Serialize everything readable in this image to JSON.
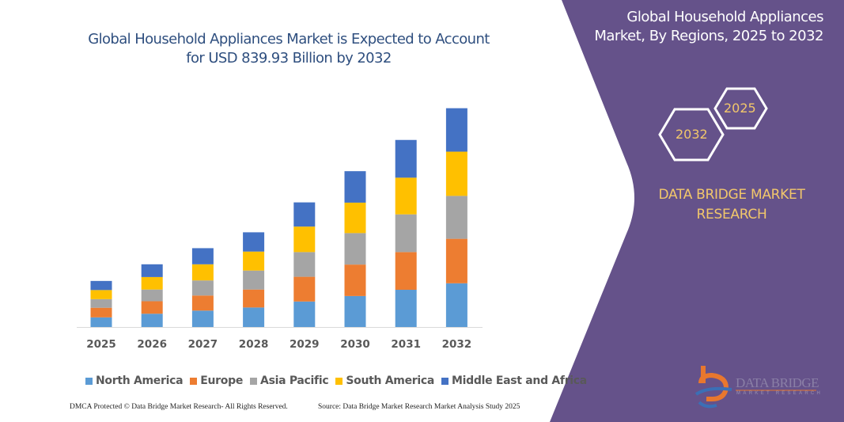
{
  "title": {
    "line1": "Global Household Appliances Market is Expected to Account",
    "line2": "for USD 839.93 Billion by 2032"
  },
  "side_panel": {
    "title_line1": "Global Household Appliances",
    "title_line2": "Market, By Regions, 2025 to 2032",
    "hex_start": "2025",
    "hex_end": "2032",
    "brand_line1": "DATA BRIDGE MARKET",
    "brand_line2": "RESEARCH",
    "logo_text": "DATA BRIDGE",
    "logo_subtext": "MARKET RESEARCH",
    "background_color": "#65528a",
    "accent_color": "#f2c76b"
  },
  "footer": {
    "left": "DMCA Protected © Data Bridge Market Research-  All Rights Reserved.",
    "right": "Source: Data Bridge Market Research  Market Analysis Study 2025"
  },
  "chart_data": {
    "type": "bar",
    "stacked": true,
    "title": "Global Household Appliances Market is Expected to Account for USD 839.93 Billion by 2032",
    "xlabel": "",
    "ylabel": "",
    "ylim": [
      0,
      840
    ],
    "grid": false,
    "legend_position": "bottom",
    "categories": [
      "2025",
      "2026",
      "2027",
      "2028",
      "2029",
      "2030",
      "2031",
      "2032"
    ],
    "series": [
      {
        "name": "North America",
        "color": "#5b9bd5",
        "values": [
          37,
          51,
          63,
          75,
          98,
          119,
          143,
          168
        ]
      },
      {
        "name": "Europe",
        "color": "#ed7d31",
        "values": [
          37,
          48,
          58,
          69,
          95,
          121,
          145,
          171
        ]
      },
      {
        "name": "Asia Pacific",
        "color": "#a5a5a5",
        "values": [
          33,
          45,
          58,
          73,
          95,
          121,
          145,
          165
        ]
      },
      {
        "name": "South America",
        "color": "#ffc000",
        "values": [
          35,
          48,
          62,
          73,
          98,
          117,
          141,
          170
        ]
      },
      {
        "name": "Middle East and Africa",
        "color": "#4472c4",
        "values": [
          35,
          49,
          62,
          74,
          93,
          121,
          145,
          167
        ]
      }
    ]
  }
}
